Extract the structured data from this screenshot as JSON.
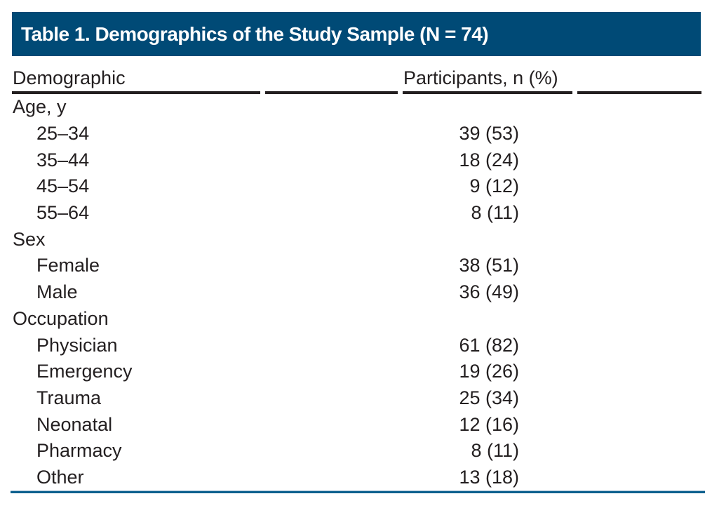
{
  "table": {
    "title": "Table 1. Demographics of the Study Sample (N = 74)",
    "columns": [
      "Demographic",
      "Participants, n (%)"
    ],
    "rows": [
      {
        "label": "Age, y",
        "value": "",
        "indent": false
      },
      {
        "label": "25–34",
        "value": "39 (53)",
        "indent": true
      },
      {
        "label": "35–44",
        "value": "18 (24)",
        "indent": true
      },
      {
        "label": "45–54",
        "value": "9 (12)",
        "indent": true
      },
      {
        "label": "55–64",
        "value": "8 (11)",
        "indent": true
      },
      {
        "label": "Sex",
        "value": "",
        "indent": false
      },
      {
        "label": "Female",
        "value": "38 (51)",
        "indent": true
      },
      {
        "label": "Male",
        "value": "36 (49)",
        "indent": true
      },
      {
        "label": "Occupation",
        "value": "",
        "indent": false
      },
      {
        "label": "Physician",
        "value": "61 (82)",
        "indent": true
      },
      {
        "label": "Emergency",
        "value": "19 (26)",
        "indent": true
      },
      {
        "label": "Trauma",
        "value": "25 (34)",
        "indent": true
      },
      {
        "label": "Neonatal",
        "value": "12 (16)",
        "indent": true
      },
      {
        "label": "Pharmacy",
        "value": "8 (11)",
        "indent": true
      },
      {
        "label": "Other",
        "value": "13 (18)",
        "indent": true
      }
    ]
  },
  "colors": {
    "header_bg": "#004a76",
    "header_text": "#ffffff",
    "body_text": "#231f20",
    "header_rule": "#231f20",
    "bottom_rule": "#0d608e"
  }
}
